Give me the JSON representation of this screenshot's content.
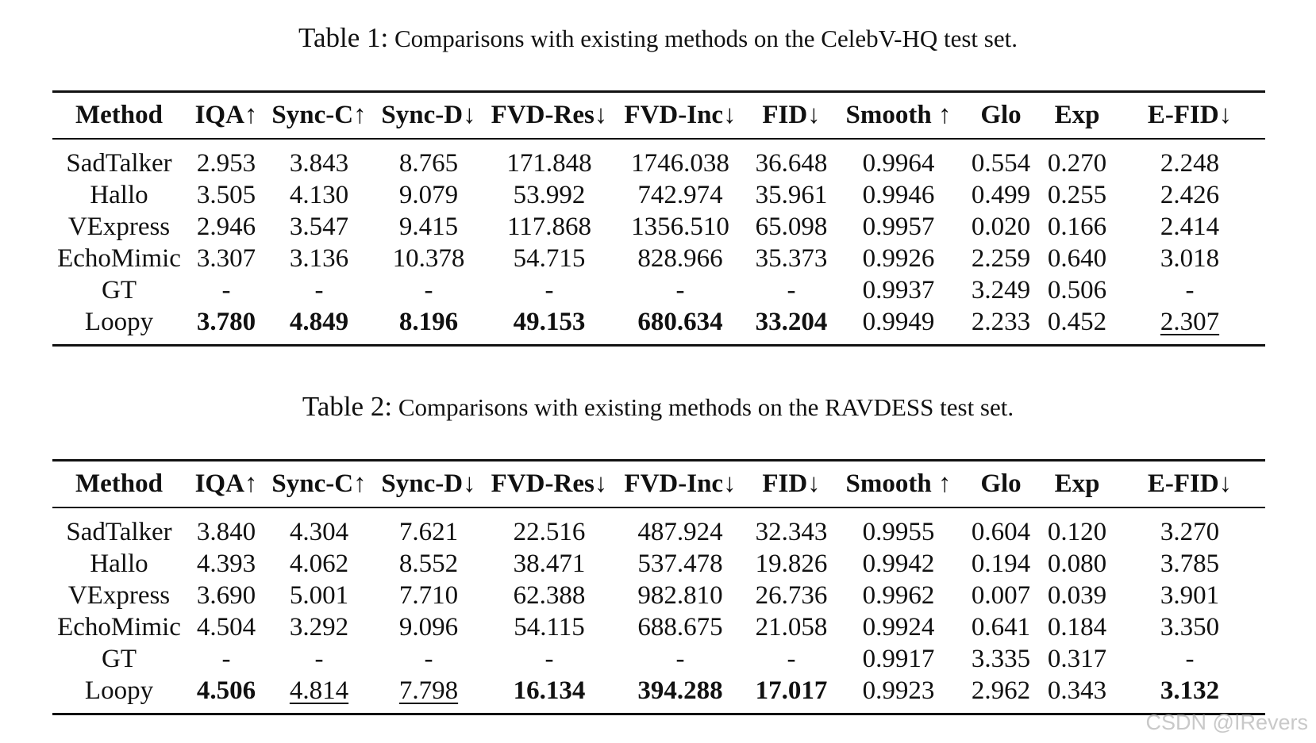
{
  "tables": [
    {
      "label": "Table 1:",
      "caption": "Comparisons with existing methods on the CelebV-HQ test set.",
      "headers": [
        "Method",
        "IQA↑",
        "Sync-C↑",
        "Sync-D↓",
        "FVD-Res↓",
        "FVD-Inc↓",
        "FID↓",
        "Smooth ↑",
        "Glo",
        "Exp",
        "E-FID↓"
      ],
      "rows": [
        {
          "cells": [
            "SadTalker",
            "2.953",
            "3.843",
            "8.765",
            "171.848",
            "1746.038",
            "36.648",
            "0.9964",
            "0.554",
            "0.270",
            "2.248"
          ],
          "bold": [],
          "underline": []
        },
        {
          "cells": [
            "Hallo",
            "3.505",
            "4.130",
            "9.079",
            "53.992",
            "742.974",
            "35.961",
            "0.9946",
            "0.499",
            "0.255",
            "2.426"
          ],
          "bold": [],
          "underline": []
        },
        {
          "cells": [
            "VExpress",
            "2.946",
            "3.547",
            "9.415",
            "117.868",
            "1356.510",
            "65.098",
            "0.9957",
            "0.020",
            "0.166",
            "2.414"
          ],
          "bold": [],
          "underline": []
        },
        {
          "cells": [
            "EchoMimic",
            "3.307",
            "3.136",
            "10.378",
            "54.715",
            "828.966",
            "35.373",
            "0.9926",
            "2.259",
            "0.640",
            "3.018"
          ],
          "bold": [],
          "underline": []
        },
        {
          "cells": [
            "GT",
            "-",
            "-",
            "-",
            "-",
            "-",
            "-",
            "0.9937",
            "3.249",
            "0.506",
            "-"
          ],
          "bold": [],
          "underline": []
        },
        {
          "cells": [
            "Loopy",
            "3.780",
            "4.849",
            "8.196",
            "49.153",
            "680.634",
            "33.204",
            "0.9949",
            "2.233",
            "0.452",
            "2.307"
          ],
          "bold": [
            1,
            2,
            3,
            4,
            5,
            6
          ],
          "underline": [
            10
          ]
        }
      ]
    },
    {
      "label": "Table 2:",
      "caption": "Comparisons with existing methods on the RAVDESS test set.",
      "headers": [
        "Method",
        "IQA↑",
        "Sync-C↑",
        "Sync-D↓",
        "FVD-Res↓",
        "FVD-Inc↓",
        "FID↓",
        "Smooth ↑",
        "Glo",
        "Exp",
        "E-FID↓"
      ],
      "rows": [
        {
          "cells": [
            "SadTalker",
            "3.840",
            "4.304",
            "7.621",
            "22.516",
            "487.924",
            "32.343",
            "0.9955",
            "0.604",
            "0.120",
            "3.270"
          ],
          "bold": [],
          "underline": []
        },
        {
          "cells": [
            "Hallo",
            "4.393",
            "4.062",
            "8.552",
            "38.471",
            "537.478",
            "19.826",
            "0.9942",
            "0.194",
            "0.080",
            "3.785"
          ],
          "bold": [],
          "underline": []
        },
        {
          "cells": [
            "VExpress",
            "3.690",
            "5.001",
            "7.710",
            "62.388",
            "982.810",
            "26.736",
            "0.9962",
            "0.007",
            "0.039",
            "3.901"
          ],
          "bold": [],
          "underline": []
        },
        {
          "cells": [
            "EchoMimic",
            "4.504",
            "3.292",
            "9.096",
            "54.115",
            "688.675",
            "21.058",
            "0.9924",
            "0.641",
            "0.184",
            "3.350"
          ],
          "bold": [],
          "underline": []
        },
        {
          "cells": [
            "GT",
            "-",
            "-",
            "-",
            "-",
            "-",
            "-",
            "0.9917",
            "3.335",
            "0.317",
            "-"
          ],
          "bold": [],
          "underline": []
        },
        {
          "cells": [
            "Loopy",
            "4.506",
            "4.814",
            "7.798",
            "16.134",
            "394.288",
            "17.017",
            "0.9923",
            "2.962",
            "0.343",
            "3.132"
          ],
          "bold": [
            1,
            4,
            5,
            6,
            10
          ],
          "underline": [
            2,
            3
          ]
        }
      ]
    }
  ],
  "watermark": "CSDN @IRevers"
}
